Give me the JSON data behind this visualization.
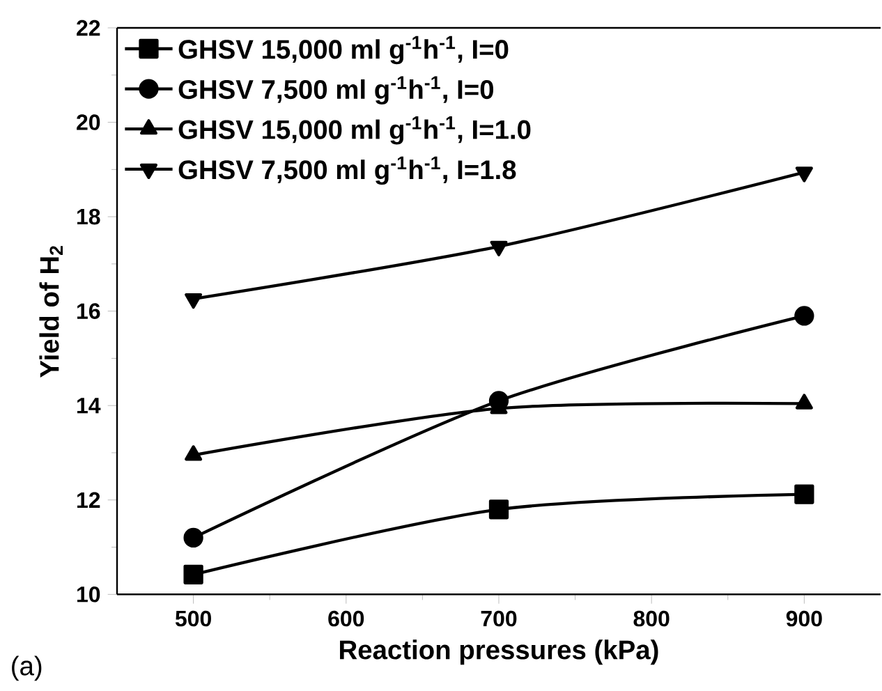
{
  "chart_data": {
    "type": "line",
    "xlabel": "Reaction pressures (kPa)",
    "ylabel": "Yield of H$_{2}$",
    "x": [
      500,
      700,
      900
    ],
    "series": [
      {
        "name": "GHSV 15,000 ml g$^{-1}$h$^{-1}$, I=0",
        "color": "#000000",
        "marker": "square",
        "values": [
          10.42,
          11.8,
          12.12
        ]
      },
      {
        "name": "GHSV 7,500 ml g$^{-1}$h$^{-1}$, I=0",
        "color": "#000000",
        "marker": "circle",
        "values": [
          11.2,
          14.1,
          15.9
        ]
      },
      {
        "name": "GHSV 15,000 ml g$^{-1}$h$^{-1}$, I=1.0",
        "color": "#000000",
        "marker": "triangle",
        "values": [
          12.95,
          13.94,
          14.04
        ]
      },
      {
        "name": "GHSV 7,500 ml g$^{-1}$h$^{-1}$, I=1.8",
        "color": "#000000",
        "marker": "triangle-down",
        "values": [
          16.26,
          17.37,
          18.94
        ]
      }
    ],
    "xlim": [
      450,
      950
    ],
    "ylim": [
      10,
      22
    ],
    "xticks": [
      500,
      600,
      700,
      800,
      900
    ],
    "yticks": [
      10,
      12,
      14,
      16,
      18,
      20,
      22
    ],
    "legend": "top left",
    "grid": false,
    "line_style": "solid",
    "annotations": [
      "(a)"
    ]
  }
}
